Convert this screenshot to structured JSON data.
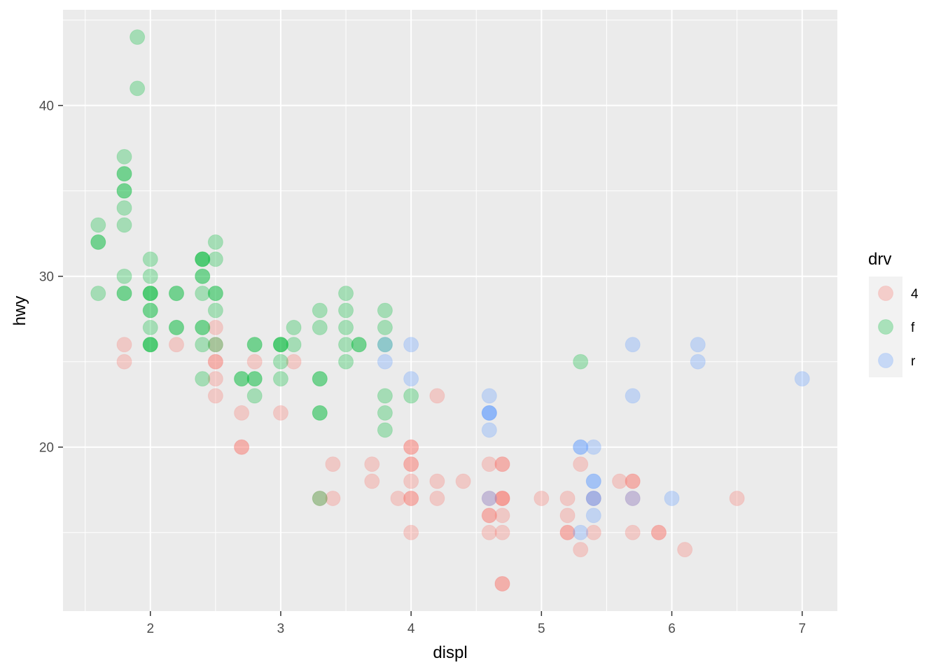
{
  "chart_data": {
    "type": "scatter",
    "xlabel": "displ",
    "ylabel": "hwy",
    "xlim": [
      1.33,
      7.27
    ],
    "ylim": [
      10.4,
      45.6
    ],
    "x_ticks": [
      2,
      3,
      4,
      5,
      6,
      7
    ],
    "x_tick_labels": [
      "2",
      "3",
      "4",
      "5",
      "6",
      "7"
    ],
    "y_ticks": [
      20,
      30,
      40
    ],
    "y_tick_labels": [
      "20",
      "30",
      "40"
    ],
    "grid": true,
    "point_alpha": 0.3,
    "legend": {
      "title": "drv",
      "position": "right",
      "entries": [
        {
          "label": "4",
          "color": "#F8766D"
        },
        {
          "label": "f",
          "color": "#00BA38"
        },
        {
          "label": "r",
          "color": "#619CFF"
        }
      ]
    },
    "series": [
      {
        "name": "4",
        "color": "#F8766D",
        "points": [
          [
            1.8,
            26
          ],
          [
            1.8,
            25
          ],
          [
            2.2,
            26
          ],
          [
            2.5,
            27
          ],
          [
            2.5,
            26
          ],
          [
            2.5,
            25
          ],
          [
            2.5,
            25
          ],
          [
            2.5,
            24
          ],
          [
            2.5,
            23
          ],
          [
            2.7,
            22
          ],
          [
            2.7,
            20
          ],
          [
            2.7,
            20
          ],
          [
            2.8,
            25
          ],
          [
            3.0,
            22
          ],
          [
            3.1,
            25
          ],
          [
            3.3,
            17
          ],
          [
            3.4,
            19
          ],
          [
            3.4,
            17
          ],
          [
            3.7,
            19
          ],
          [
            3.7,
            18
          ],
          [
            3.9,
            17
          ],
          [
            4.0,
            20
          ],
          [
            4.0,
            20
          ],
          [
            4.0,
            19
          ],
          [
            4.0,
            19
          ],
          [
            4.0,
            18
          ],
          [
            4.0,
            17
          ],
          [
            4.0,
            17
          ],
          [
            4.0,
            15
          ],
          [
            4.2,
            23
          ],
          [
            4.2,
            18
          ],
          [
            4.2,
            17
          ],
          [
            4.4,
            18
          ],
          [
            4.6,
            19
          ],
          [
            4.6,
            17
          ],
          [
            4.6,
            16
          ],
          [
            4.6,
            16
          ],
          [
            4.6,
            15
          ],
          [
            4.7,
            19
          ],
          [
            4.7,
            19
          ],
          [
            4.7,
            17
          ],
          [
            4.7,
            17
          ],
          [
            4.7,
            17
          ],
          [
            4.7,
            16
          ],
          [
            4.7,
            15
          ],
          [
            4.7,
            12
          ],
          [
            4.7,
            12
          ],
          [
            5.0,
            17
          ],
          [
            5.2,
            17
          ],
          [
            5.2,
            16
          ],
          [
            5.2,
            15
          ],
          [
            5.2,
            15
          ],
          [
            5.3,
            19
          ],
          [
            5.3,
            14
          ],
          [
            5.4,
            17
          ],
          [
            5.4,
            15
          ],
          [
            5.6,
            18
          ],
          [
            5.7,
            18
          ],
          [
            5.7,
            18
          ],
          [
            5.7,
            17
          ],
          [
            5.7,
            15
          ],
          [
            5.9,
            15
          ],
          [
            5.9,
            15
          ],
          [
            6.1,
            14
          ],
          [
            6.5,
            17
          ]
        ]
      },
      {
        "name": "f",
        "color": "#00BA38",
        "points": [
          [
            1.6,
            33
          ],
          [
            1.6,
            32
          ],
          [
            1.6,
            32
          ],
          [
            1.6,
            29
          ],
          [
            1.8,
            37
          ],
          [
            1.8,
            36
          ],
          [
            1.8,
            36
          ],
          [
            1.8,
            35
          ],
          [
            1.8,
            35
          ],
          [
            1.8,
            34
          ],
          [
            1.8,
            33
          ],
          [
            1.8,
            30
          ],
          [
            1.8,
            29
          ],
          [
            1.8,
            29
          ],
          [
            1.9,
            44
          ],
          [
            1.9,
            41
          ],
          [
            2.0,
            31
          ],
          [
            2.0,
            30
          ],
          [
            2.0,
            29
          ],
          [
            2.0,
            29
          ],
          [
            2.0,
            29
          ],
          [
            2.0,
            28
          ],
          [
            2.0,
            28
          ],
          [
            2.0,
            27
          ],
          [
            2.0,
            26
          ],
          [
            2.0,
            26
          ],
          [
            2.0,
            26
          ],
          [
            2.2,
            29
          ],
          [
            2.2,
            29
          ],
          [
            2.2,
            27
          ],
          [
            2.2,
            27
          ],
          [
            2.4,
            31
          ],
          [
            2.4,
            31
          ],
          [
            2.4,
            31
          ],
          [
            2.4,
            30
          ],
          [
            2.4,
            30
          ],
          [
            2.4,
            29
          ],
          [
            2.4,
            27
          ],
          [
            2.4,
            27
          ],
          [
            2.4,
            26
          ],
          [
            2.4,
            24
          ],
          [
            2.5,
            32
          ],
          [
            2.5,
            31
          ],
          [
            2.5,
            29
          ],
          [
            2.5,
            29
          ],
          [
            2.5,
            28
          ],
          [
            2.5,
            26
          ],
          [
            2.7,
            24
          ],
          [
            2.7,
            24
          ],
          [
            2.8,
            26
          ],
          [
            2.8,
            26
          ],
          [
            2.8,
            24
          ],
          [
            2.8,
            24
          ],
          [
            2.8,
            23
          ],
          [
            3.0,
            26
          ],
          [
            3.0,
            26
          ],
          [
            3.0,
            26
          ],
          [
            3.0,
            25
          ],
          [
            3.0,
            24
          ],
          [
            3.1,
            27
          ],
          [
            3.1,
            26
          ],
          [
            3.3,
            28
          ],
          [
            3.3,
            27
          ],
          [
            3.3,
            24
          ],
          [
            3.3,
            24
          ],
          [
            3.3,
            22
          ],
          [
            3.3,
            22
          ],
          [
            3.3,
            17
          ],
          [
            3.5,
            29
          ],
          [
            3.5,
            28
          ],
          [
            3.5,
            27
          ],
          [
            3.5,
            26
          ],
          [
            3.5,
            25
          ],
          [
            3.6,
            26
          ],
          [
            3.6,
            26
          ],
          [
            3.8,
            28
          ],
          [
            3.8,
            27
          ],
          [
            3.8,
            26
          ],
          [
            3.8,
            23
          ],
          [
            3.8,
            22
          ],
          [
            3.8,
            21
          ],
          [
            4.0,
            23
          ],
          [
            5.3,
            25
          ]
        ]
      },
      {
        "name": "r",
        "color": "#619CFF",
        "points": [
          [
            3.8,
            26
          ],
          [
            3.8,
            25
          ],
          [
            4.0,
            26
          ],
          [
            4.0,
            24
          ],
          [
            4.6,
            23
          ],
          [
            4.6,
            22
          ],
          [
            4.6,
            22
          ],
          [
            4.6,
            22
          ],
          [
            4.6,
            21
          ],
          [
            4.6,
            17
          ],
          [
            5.3,
            20
          ],
          [
            5.3,
            20
          ],
          [
            5.3,
            15
          ],
          [
            5.4,
            20
          ],
          [
            5.4,
            18
          ],
          [
            5.4,
            18
          ],
          [
            5.4,
            17
          ],
          [
            5.4,
            17
          ],
          [
            5.4,
            16
          ],
          [
            5.7,
            26
          ],
          [
            5.7,
            23
          ],
          [
            5.7,
            17
          ],
          [
            6.0,
            17
          ],
          [
            6.2,
            26
          ],
          [
            6.2,
            25
          ],
          [
            7.0,
            24
          ]
        ]
      }
    ]
  }
}
